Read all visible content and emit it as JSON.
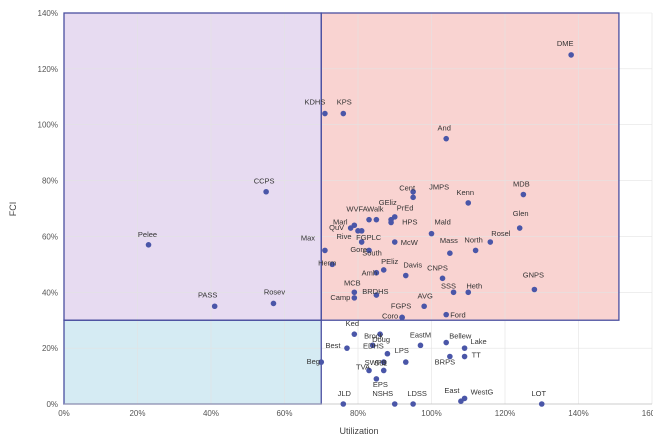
{
  "chart_data": {
    "type": "scatter",
    "title": "",
    "xlabel": "Utilization",
    "ylabel": "FCI",
    "xlim": [
      0,
      160
    ],
    "ylim": [
      0,
      140
    ],
    "x_ticks": [
      0,
      20,
      40,
      60,
      80,
      100,
      120,
      140,
      160
    ],
    "y_ticks": [
      0,
      20,
      40,
      60,
      80,
      100,
      120,
      140
    ],
    "x_tick_labels": [
      "0%",
      "20%",
      "40%",
      "60%",
      "80%",
      "100%",
      "120%",
      "140%",
      "160%"
    ],
    "y_tick_labels": [
      "0%",
      "20%",
      "40%",
      "60%",
      "80%",
      "100%",
      "120%",
      "140%"
    ],
    "x_threshold": 70,
    "y_threshold": 30,
    "grid": true,
    "legend": "none",
    "colors": {
      "point": "#4a56a8",
      "quadrant_purple": "#e7dbf1",
      "quadrant_red": "#f9d3d1",
      "quadrant_blue": "#d5ebf3",
      "quadrant_border": "#4a4fa0",
      "grid": "#e3e3e3"
    },
    "points": [
      {
        "label": "DME",
        "x": 138,
        "y": 125
      },
      {
        "label": "KDHS",
        "x": 71,
        "y": 104
      },
      {
        "label": "KPS",
        "x": 76,
        "y": 104
      },
      {
        "label": "And",
        "x": 104,
        "y": 95
      },
      {
        "label": "CCPS",
        "x": 55,
        "y": 76
      },
      {
        "label": "Cent",
        "x": 95,
        "y": 76
      },
      {
        "label": "JMPS",
        "x": 95,
        "y": 74
      },
      {
        "label": "Kenn",
        "x": 110,
        "y": 72
      },
      {
        "label": "MDB",
        "x": 125,
        "y": 75
      },
      {
        "label": "WVFA",
        "x": 83,
        "y": 66
      },
      {
        "label": "Walk",
        "x": 85,
        "y": 66
      },
      {
        "label": "GEliz",
        "x": 90,
        "y": 67
      },
      {
        "label": "PrEd",
        "x": 89,
        "y": 66
      },
      {
        "label": "Marl",
        "x": 79,
        "y": 64
      },
      {
        "label": "QuV",
        "x": 78,
        "y": 63
      },
      {
        "label": "HPS",
        "x": 89,
        "y": 65
      },
      {
        "label": "Rive",
        "x": 80,
        "y": 62
      },
      {
        "label": "FGPLC",
        "x": 81,
        "y": 62
      },
      {
        "label": "Glen",
        "x": 124,
        "y": 63
      },
      {
        "label": "Mald",
        "x": 100,
        "y": 61
      },
      {
        "label": "Pelee",
        "x": 23,
        "y": 57
      },
      {
        "label": "Max",
        "x": 71,
        "y": 55
      },
      {
        "label": "McW",
        "x": 90,
        "y": 58
      },
      {
        "label": "Rosel",
        "x": 116,
        "y": 58
      },
      {
        "label": "Gore",
        "x": 81,
        "y": 58
      },
      {
        "label": "South",
        "x": 83,
        "y": 55
      },
      {
        "label": "Mass",
        "x": 105,
        "y": 54
      },
      {
        "label": "North",
        "x": 112,
        "y": 55
      },
      {
        "label": "Herm",
        "x": 73,
        "y": 50
      },
      {
        "label": "PEliz",
        "x": 87,
        "y": 48
      },
      {
        "label": "Davis",
        "x": 93,
        "y": 46
      },
      {
        "label": "Amh",
        "x": 85,
        "y": 47
      },
      {
        "label": "CNPS",
        "x": 103,
        "y": 45
      },
      {
        "label": "GNPS",
        "x": 128,
        "y": 41
      },
      {
        "label": "PASS",
        "x": 41,
        "y": 35
      },
      {
        "label": "Rosev",
        "x": 57,
        "y": 36
      },
      {
        "label": "MCB",
        "x": 79,
        "y": 40
      },
      {
        "label": "BRDHS",
        "x": 85,
        "y": 39
      },
      {
        "label": "SSS",
        "x": 106,
        "y": 40
      },
      {
        "label": "Heth",
        "x": 110,
        "y": 40
      },
      {
        "label": "Camp",
        "x": 79,
        "y": 38
      },
      {
        "label": "AVG",
        "x": 98,
        "y": 35
      },
      {
        "label": "FGPS",
        "x": 92,
        "y": 31
      },
      {
        "label": "Coro",
        "x": 92,
        "y": 31
      },
      {
        "label": "Ford",
        "x": 104,
        "y": 32
      },
      {
        "label": "Ked",
        "x": 79,
        "y": 25
      },
      {
        "label": "Doug",
        "x": 86,
        "y": 25
      },
      {
        "label": "EastM",
        "x": 97,
        "y": 21
      },
      {
        "label": "Bellew",
        "x": 104,
        "y": 22
      },
      {
        "label": "Best",
        "x": 77,
        "y": 20
      },
      {
        "label": "Brock",
        "x": 84,
        "y": 21
      },
      {
        "label": "EDHS",
        "x": 88,
        "y": 18
      },
      {
        "label": "Lake",
        "x": 109,
        "y": 20
      },
      {
        "label": "SWPS",
        "x": 87,
        "y": 15
      },
      {
        "label": "LPS",
        "x": 93,
        "y": 15
      },
      {
        "label": "BRPS",
        "x": 105,
        "y": 17
      },
      {
        "label": "TT",
        "x": 109,
        "y": 17
      },
      {
        "label": "Beg",
        "x": 70,
        "y": 15
      },
      {
        "label": "TVA",
        "x": 83,
        "y": 12
      },
      {
        "label": "Suz",
        "x": 87,
        "y": 12
      },
      {
        "label": "EPS",
        "x": 85,
        "y": 9
      },
      {
        "label": "JLD",
        "x": 76,
        "y": 0
      },
      {
        "label": "NSHS",
        "x": 90,
        "y": 0
      },
      {
        "label": "LDSS",
        "x": 95,
        "y": 0
      },
      {
        "label": "East",
        "x": 108,
        "y": 1
      },
      {
        "label": "WestG",
        "x": 109,
        "y": 2
      },
      {
        "label": "LOT",
        "x": 130,
        "y": 0
      }
    ]
  }
}
